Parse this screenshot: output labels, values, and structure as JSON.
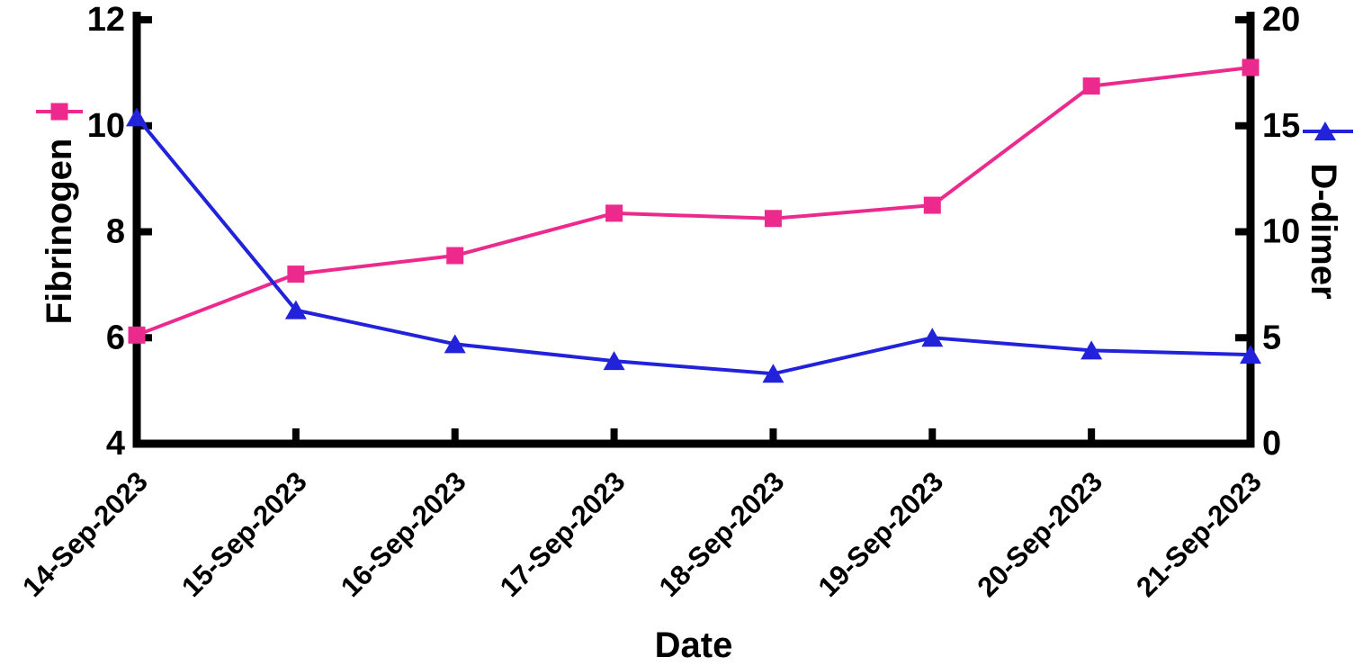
{
  "chart_data": {
    "type": "line",
    "title": "",
    "grid": false,
    "background": "#ffffff",
    "axis_color": "#000000",
    "x": {
      "label": "Date",
      "categories": [
        "14-Sep-2023",
        "15-Sep-2023",
        "16-Sep-2023",
        "17-Sep-2023",
        "18-Sep-2023",
        "19-Sep-2023",
        "20-Sep-2023",
        "21-Sep-2023"
      ]
    },
    "axes": {
      "left": {
        "label": "Fibrinogen",
        "range": [
          4,
          12
        ],
        "ticks": [
          4,
          6,
          8,
          10,
          12
        ]
      },
      "right": {
        "label": "D-dimer",
        "range": [
          0,
          20
        ],
        "ticks": [
          0,
          5,
          10,
          15,
          20
        ]
      }
    },
    "series": [
      {
        "name": "Fibrinogen",
        "axis": "left",
        "color": "#EC2A8D",
        "marker": "square",
        "values": [
          6.05,
          7.2,
          7.55,
          8.35,
          8.25,
          8.5,
          10.75,
          11.1
        ]
      },
      {
        "name": "D-dimer",
        "axis": "right",
        "color": "#2222DB",
        "marker": "triangle",
        "values": [
          15.4,
          6.3,
          4.7,
          3.9,
          3.3,
          5.0,
          4.4,
          4.2
        ]
      }
    ],
    "legend": [
      {
        "series": "Fibrinogen",
        "position": "upper-left-margin",
        "marker": "square"
      },
      {
        "series": "D-dimer",
        "position": "upper-right-margin",
        "marker": "triangle"
      }
    ]
  }
}
